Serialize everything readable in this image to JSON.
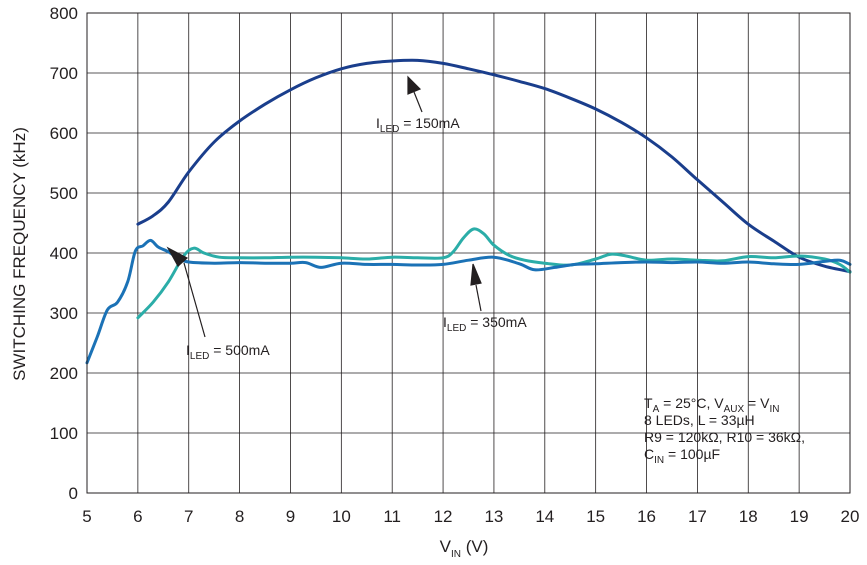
{
  "chart_data": {
    "type": "line",
    "xlabel": {
      "main": "V",
      "sub": "IN",
      "unit": " (V)"
    },
    "ylabel": "SWITCHING FREQUENCY (kHz)",
    "xlim": [
      5,
      20
    ],
    "ylim": [
      0,
      800
    ],
    "xticks": [
      5,
      6,
      7,
      8,
      9,
      10,
      11,
      12,
      13,
      14,
      15,
      16,
      17,
      18,
      19,
      20
    ],
    "yticks": [
      0,
      100,
      200,
      300,
      400,
      500,
      600,
      700,
      800
    ],
    "grid": true,
    "series": [
      {
        "name": "ILED = 150mA",
        "color": "#1a3e8c",
        "x": [
          6.0,
          6.3,
          6.6,
          7.0,
          7.5,
          8.0,
          8.5,
          9.0,
          9.5,
          10.0,
          10.5,
          11.0,
          11.5,
          12.0,
          12.5,
          13.0,
          13.5,
          14.0,
          14.5,
          15.0,
          15.5,
          16.0,
          16.5,
          17.0,
          17.5,
          18.0,
          18.5,
          19.0,
          19.5,
          20.0
        ],
        "values": [
          448,
          462,
          485,
          535,
          585,
          620,
          648,
          672,
          692,
          707,
          716,
          720,
          721,
          716,
          707,
          697,
          686,
          674,
          658,
          640,
          618,
          592,
          560,
          522,
          485,
          448,
          420,
          393,
          378,
          369
        ]
      },
      {
        "name": "ILED = 350mA",
        "color": "#2bada8",
        "x": [
          6.0,
          6.3,
          6.6,
          6.9,
          7.1,
          7.3,
          7.6,
          8.0,
          8.5,
          9.0,
          9.5,
          10.0,
          10.5,
          11.0,
          11.5,
          12.0,
          12.2,
          12.4,
          12.6,
          12.8,
          13.0,
          13.3,
          13.6,
          14.0,
          14.5,
          15.0,
          15.3,
          15.6,
          16.0,
          16.5,
          17.0,
          17.5,
          18.0,
          18.5,
          19.0,
          19.5,
          19.8,
          20.0
        ],
        "values": [
          292,
          318,
          352,
          395,
          408,
          400,
          393,
          392,
          392,
          393,
          393,
          392,
          390,
          393,
          392,
          392,
          402,
          425,
          440,
          432,
          413,
          396,
          388,
          383,
          380,
          390,
          398,
          395,
          388,
          390,
          388,
          387,
          394,
          392,
          395,
          390,
          381,
          368
        ]
      },
      {
        "name": "ILED = 500mA",
        "color": "#1b72b6",
        "x": [
          5.0,
          5.2,
          5.4,
          5.6,
          5.8,
          5.95,
          6.1,
          6.25,
          6.4,
          6.6,
          6.8,
          7.0,
          7.5,
          8.0,
          8.5,
          9.0,
          9.3,
          9.6,
          10.0,
          10.5,
          11.0,
          11.5,
          12.0,
          12.5,
          13.0,
          13.5,
          13.8,
          14.2,
          14.6,
          15.0,
          15.5,
          16.0,
          16.5,
          17.0,
          17.5,
          18.0,
          18.5,
          19.0,
          19.5,
          19.8,
          20.0
        ],
        "values": [
          217,
          260,
          305,
          318,
          352,
          403,
          412,
          421,
          410,
          402,
          391,
          385,
          383,
          384,
          383,
          383,
          384,
          376,
          383,
          381,
          381,
          380,
          381,
          388,
          393,
          382,
          372,
          376,
          381,
          382,
          384,
          385,
          384,
          385,
          383,
          385,
          382,
          381,
          386,
          388,
          381
        ]
      }
    ],
    "annotations": [
      {
        "pre": "I",
        "sub": "LED",
        "post": " = 150mA"
      },
      {
        "pre": "I",
        "sub": "LED",
        "post": " = 350mA"
      },
      {
        "pre": "I",
        "sub": "LED",
        "post": " = 500mA"
      }
    ],
    "conditions": [
      [
        {
          "t": "T"
        },
        {
          "t": "A",
          "sub": true
        },
        {
          "t": " = 25°C, V"
        },
        {
          "t": "AUX",
          "sub": true
        },
        {
          "t": " = V"
        },
        {
          "t": "IN",
          "sub": true
        }
      ],
      [
        {
          "t": "8 LEDs, L = 33µH"
        }
      ],
      [
        {
          "t": "R9 = 120kΩ, R10 = 36kΩ,"
        }
      ],
      [
        {
          "t": "C"
        },
        {
          "t": "IN",
          "sub": true
        },
        {
          "t": " = 100µF"
        }
      ]
    ]
  }
}
